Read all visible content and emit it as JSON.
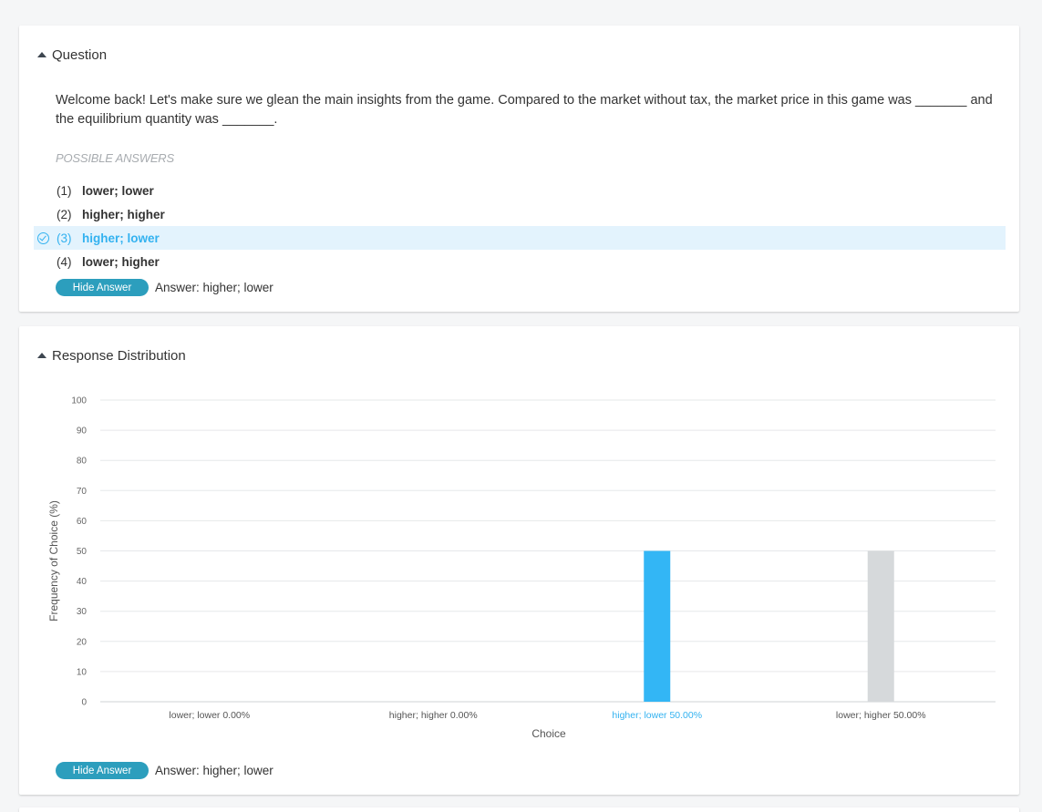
{
  "question_card": {
    "header": "Question",
    "question_text": "Welcome back! Let's make sure we glean the main insights from the game. Compared to the market without tax, the market price in this game was _______ and the equilibrium quantity was _______.",
    "possible_answers_label": "POSSIBLE ANSWERS",
    "answers": [
      {
        "num": "(1)",
        "text": "lower; lower",
        "correct": false
      },
      {
        "num": "(2)",
        "text": "higher; higher",
        "correct": false
      },
      {
        "num": "(3)",
        "text": "higher; lower",
        "correct": true
      },
      {
        "num": "(4)",
        "text": "lower; higher",
        "correct": false
      }
    ],
    "hide_button": "Hide Answer",
    "answer_text": "Answer: higher; lower"
  },
  "distribution_card": {
    "header": "Response Distribution",
    "hide_button": "Hide Answer",
    "answer_text": "Answer: higher; lower"
  },
  "colors": {
    "correct_bar": "#33b6f5",
    "other_bar": "#d6d9db",
    "accent": "#2c9ebd",
    "correct_text": "#33b2f0"
  },
  "chart_data": {
    "type": "bar",
    "categories": [
      "lower; lower",
      "higher; higher",
      "higher; lower",
      "lower; higher"
    ],
    "category_labels": [
      "lower; lower 0.00%",
      "higher; higher 0.00%",
      "higher; lower 50.00%",
      "lower; higher 50.00%"
    ],
    "values": [
      0,
      0,
      50,
      50
    ],
    "correct_index": 2,
    "xlabel": "Choice",
    "ylabel": "Frequency of Choice (%)",
    "ylim": [
      0,
      100
    ],
    "yticks": [
      0,
      10,
      20,
      30,
      40,
      50,
      60,
      70,
      80,
      90,
      100
    ],
    "grid": true
  }
}
